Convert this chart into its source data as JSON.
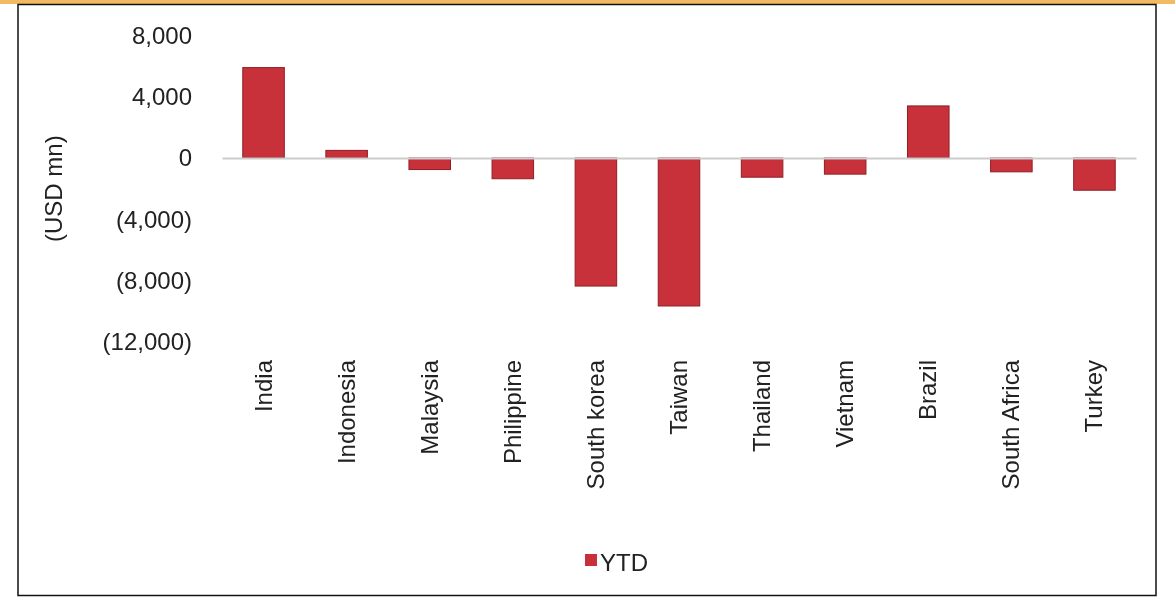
{
  "chart_data": {
    "type": "bar",
    "ylabel": "(USD mn)",
    "categories": [
      "India",
      "Indonesia",
      "Malaysia",
      "Philippine",
      "South korea",
      "Taiwan",
      "Thailand",
      "Vietnam",
      "Brazil",
      "South Africa",
      "Turkey"
    ],
    "series": [
      {
        "name": "YTD",
        "color": "#c8313a",
        "values": [
          5900,
          500,
          -750,
          -1350,
          -8350,
          -9650,
          -1250,
          -1050,
          3400,
          -900,
          -2100
        ]
      }
    ],
    "ylim": [
      -12000,
      8000
    ],
    "yticks": [
      {
        "value": 8000,
        "label": "8,000"
      },
      {
        "value": 4000,
        "label": "4,000"
      },
      0,
      {
        "value": -4000,
        "label": "(4,000)"
      },
      {
        "value": -8000,
        "label": "(8,000)"
      },
      {
        "value": -12000,
        "label": "(12,000)"
      }
    ],
    "legend": "bottom"
  }
}
